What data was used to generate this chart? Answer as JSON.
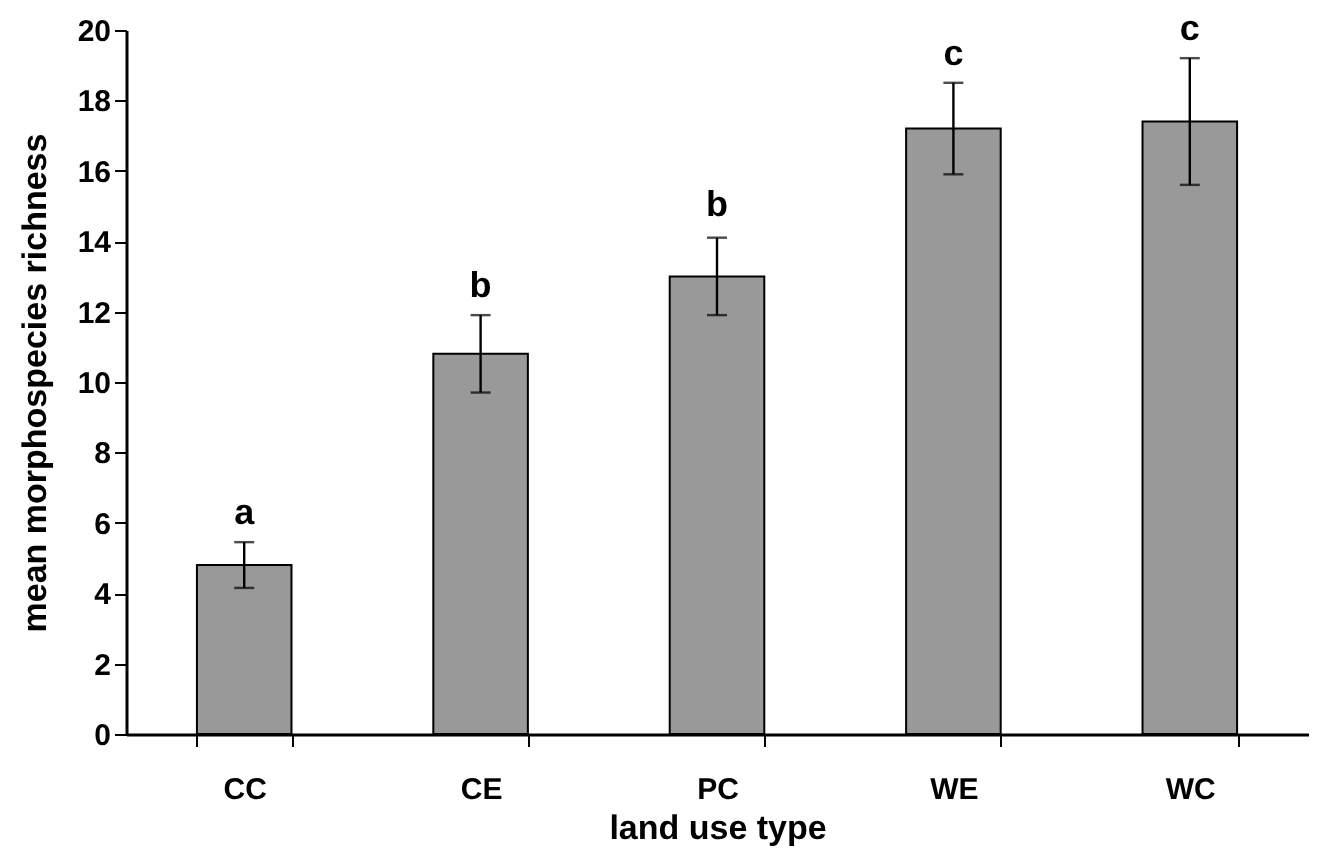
{
  "chart_data": {
    "type": "bar",
    "xlabel": "land use type",
    "ylabel": "mean morphospecies richness",
    "categories": [
      "CC",
      "CE",
      "PC",
      "WE",
      "WC"
    ],
    "values": [
      4.8,
      10.8,
      13.0,
      17.2,
      17.4
    ],
    "errors": [
      0.65,
      1.1,
      1.1,
      1.3,
      1.8
    ],
    "color": "#999999",
    "ylim": [
      0,
      20
    ],
    "yticks": [
      0,
      2,
      4,
      6,
      8,
      10,
      12,
      14,
      16,
      18,
      20
    ],
    "grid": false,
    "annotations": [
      {
        "text": "a",
        "x": "CC",
        "y": 5.45
      },
      {
        "text": "b",
        "x": "CE",
        "y": 11.9
      },
      {
        "text": "b",
        "x": "PC",
        "y": 14.2
      },
      {
        "text": "c",
        "x": "WE",
        "y": 18.5
      },
      {
        "text": "c",
        "x": "WC",
        "y": 19.2
      }
    ]
  }
}
